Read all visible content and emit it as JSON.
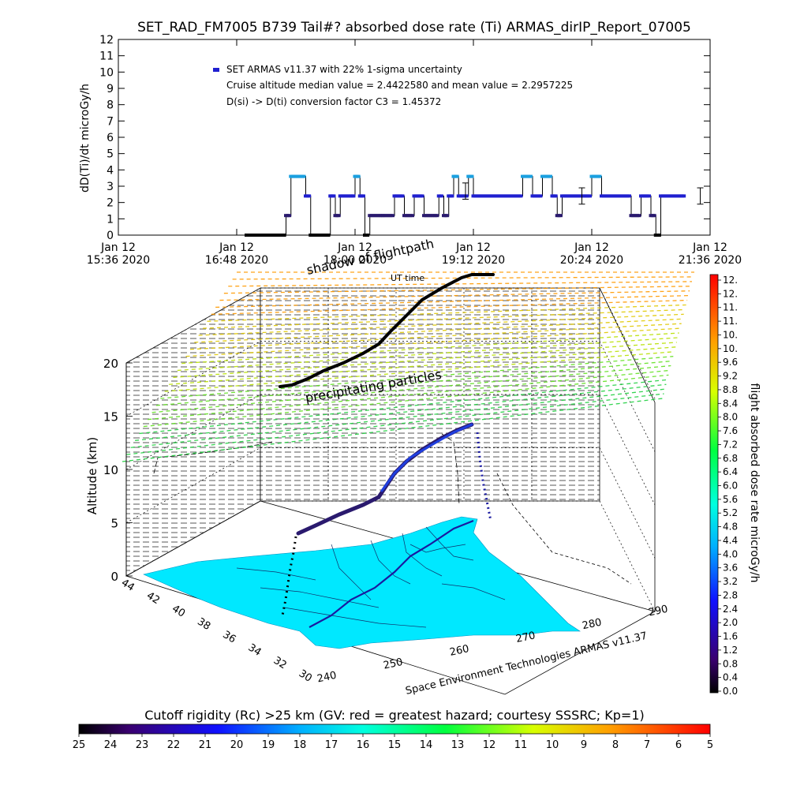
{
  "title": "SET_RAD_FM7005  B739 Tail#? absorbed dose rate (Ti) ARMAS_dirIP_Report_07005",
  "legend": {
    "line1": "SET ARMAS v11.37 with 22% 1-sigma uncertainty",
    "line2": "Cruise altitude median value = 2.4422580 and mean value = 2.2957225",
    "line3": "D(si) -> D(ti) conversion factor C3 = 1.45372"
  },
  "colors": {
    "series_dark": "#2a1a6e",
    "series_blue": "#1f1fd0",
    "series_cyan": "#1aa0e0",
    "ground": "#00e8ff",
    "flight_shadow": "#000000"
  },
  "chart_data": [
    {
      "type": "line",
      "title": "SET_RAD_FM7005  B739 Tail#? absorbed dose rate (Ti) ARMAS_dirIP_Report_07005",
      "ylabel": "dD(Ti)/dt microGy/h",
      "xlabel": "",
      "ylim": [
        0,
        12
      ],
      "yticks": [
        "0",
        "1",
        "2",
        "3",
        "4",
        "5",
        "6",
        "7",
        "8",
        "9",
        "10",
        "11",
        "12"
      ],
      "xticks": [
        {
          "l1": "Jan 12",
          "l2": "15:36 2020"
        },
        {
          "l1": "Jan 12",
          "l2": "16:48 2020"
        },
        {
          "l1": "Jan 12",
          "l2": "18:00 2020"
        },
        {
          "l1": "Jan 12",
          "l2": "19:12 2020"
        },
        {
          "l1": "Jan 12",
          "l2": "20:24 2020"
        },
        {
          "l1": "Jan 12",
          "l2": "21:36 2020"
        }
      ],
      "x_hours": [
        16.9,
        17.15,
        17.3,
        17.35,
        17.42,
        17.5,
        17.55,
        17.6,
        17.75,
        17.8,
        17.85,
        17.95,
        18.0,
        18.05,
        18.1,
        18.15,
        18.25,
        18.3,
        18.4,
        18.5,
        18.6,
        18.7,
        18.85,
        18.9,
        18.95,
        19.0,
        19.05,
        19.15,
        19.2,
        19.3,
        19.4,
        19.5,
        19.6,
        19.7,
        19.8,
        19.9,
        20.0,
        20.05,
        20.1,
        20.2,
        20.3,
        20.4,
        20.5,
        20.6,
        20.7,
        20.8,
        20.9,
        21.0,
        21.05,
        21.1,
        21.2,
        21.3,
        21.35
      ],
      "values": [
        0.0,
        0.0,
        1.2,
        3.6,
        3.6,
        2.4,
        0.0,
        0.0,
        2.4,
        1.2,
        2.4,
        2.4,
        3.6,
        2.4,
        0.0,
        1.2,
        1.2,
        1.2,
        2.4,
        1.2,
        2.4,
        1.2,
        2.4,
        1.2,
        2.4,
        3.6,
        2.4,
        3.6,
        2.4,
        2.4,
        2.4,
        2.4,
        2.4,
        3.6,
        2.4,
        3.6,
        2.4,
        1.2,
        2.4,
        2.4,
        2.4,
        3.6,
        2.4,
        2.4,
        2.4,
        1.2,
        2.4,
        1.2,
        0.0,
        2.4,
        2.4,
        2.4,
        2.4
      ],
      "error_bars": [
        {
          "x": 19.12,
          "y": 2.7,
          "err": 0.5
        },
        {
          "x": 20.3,
          "y": 2.4,
          "err": 0.5
        },
        {
          "x": 21.5,
          "y": 2.4,
          "err": 0.5
        }
      ]
    },
    {
      "type": "scatter",
      "title": "",
      "ylabel": "Altitude (km)",
      "zticks": [
        "0",
        "5",
        "10",
        "15",
        "20"
      ],
      "lat_ticks": [
        "44",
        "42",
        "40",
        "38",
        "36",
        "34",
        "32",
        "30"
      ],
      "lon_ticks": [
        "240",
        "250",
        "260",
        "270",
        "280",
        "290"
      ],
      "labels": {
        "shadow": "shadow of flightpath",
        "ut": "UT time",
        "precip": "precipitating particles",
        "credit": "Space Environment Technologies ARMAS v11.37"
      }
    },
    {
      "type": "heatmap",
      "title": "flight absorbed dose rate microGy/h",
      "colorbar_ticks": [
        "0.0",
        "0.4",
        "0.8",
        "1.2",
        "1.6",
        "2.0",
        "2.4",
        "2.8",
        "3.2",
        "3.6",
        "4.0",
        "4.4",
        "4.8",
        "5.2",
        "5.6",
        "6.0",
        "6.4",
        "6.8",
        "7.2",
        "7.6",
        "8.0",
        "8.4",
        "8.8",
        "9.2",
        "9.6",
        "10.",
        "10.",
        "11.",
        "11.",
        "12.",
        "12."
      ]
    },
    {
      "type": "heatmap",
      "title": "Cutoff rigidity (Rc) >25 km (GV: red = greatest hazard; courtesy SSSRC; Kp=1)",
      "colorbar_ticks": [
        "25",
        "24",
        "23",
        "22",
        "21",
        "20",
        "19",
        "18",
        "17",
        "16",
        "15",
        "14",
        "13",
        "12",
        "11",
        "10",
        "9",
        "8",
        "7",
        "6",
        "5"
      ]
    }
  ]
}
